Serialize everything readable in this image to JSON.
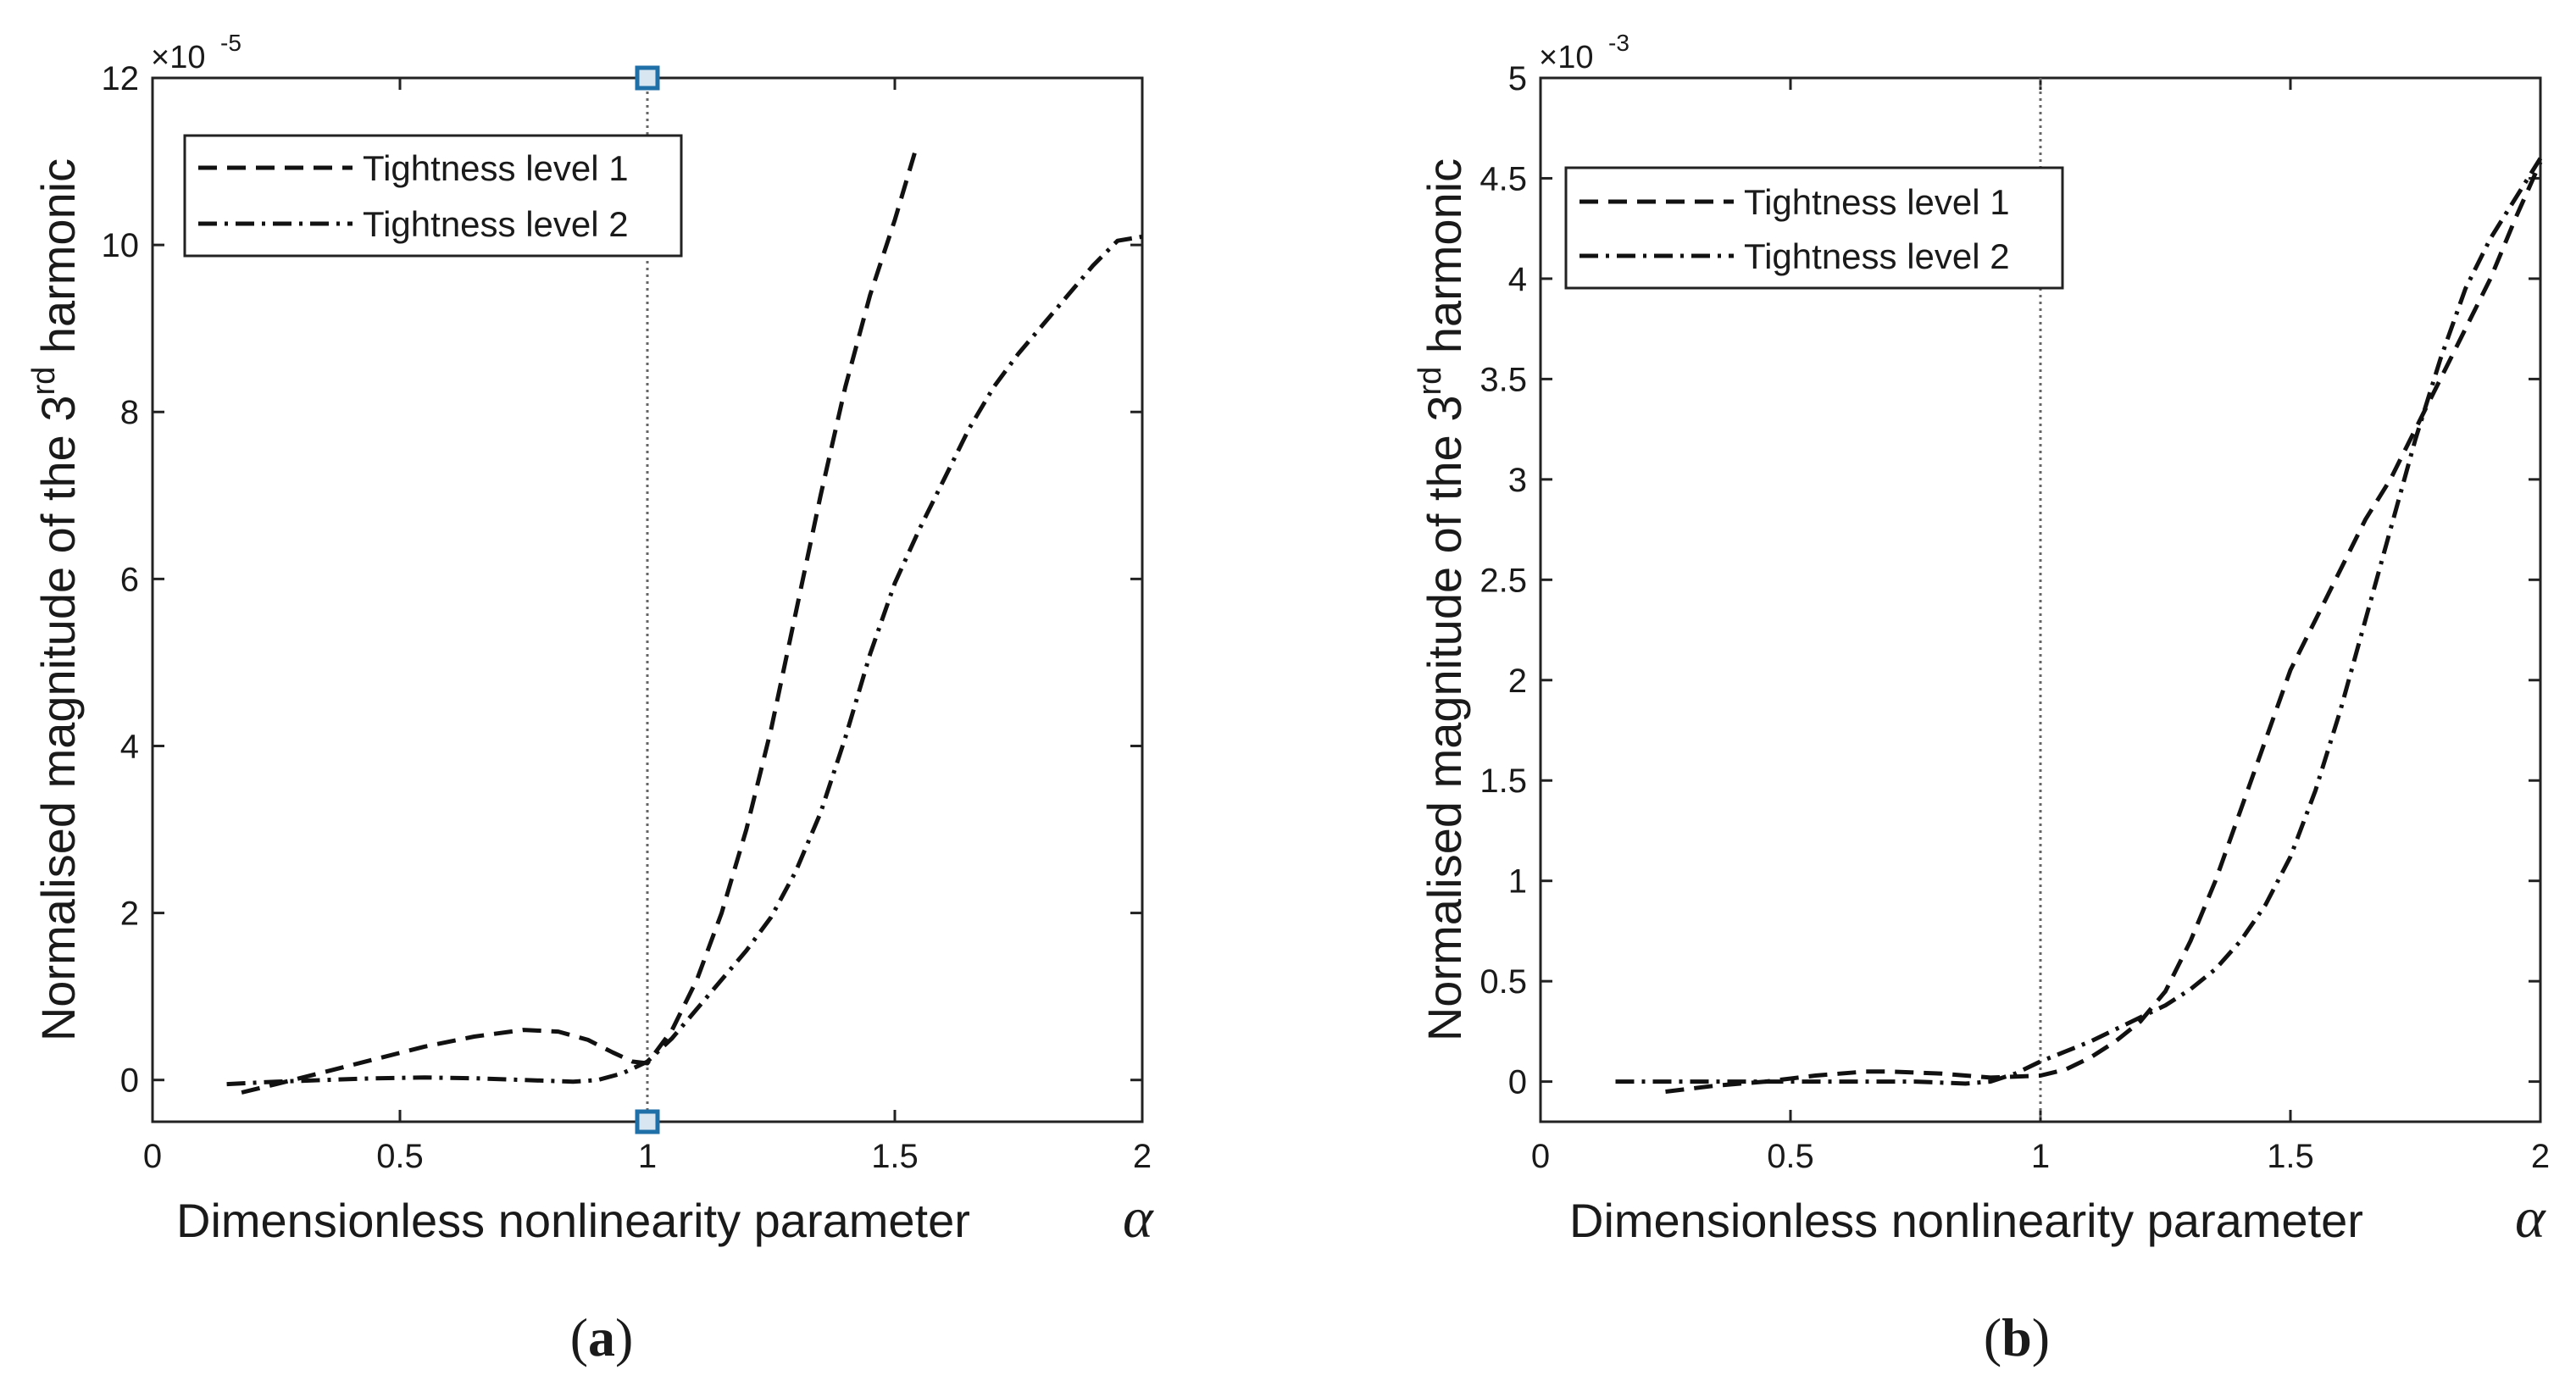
{
  "chart_data": [
    {
      "type": "line",
      "panel_label": "a",
      "xlabel": "Dimensionless nonlinearity parameter",
      "xlabel_symbol": "α",
      "ylabel": {
        "prefix": "Normalised magnitude of the 3",
        "sup": "rd",
        "suffix": " harmonic"
      },
      "exponent": {
        "base": "×10",
        "power": "-5"
      },
      "xlim": [
        0,
        2
      ],
      "ylim": [
        -0.5,
        12
      ],
      "xticks": [
        0,
        0.5,
        1,
        1.5,
        2
      ],
      "xtick_labels": [
        "0",
        "0.5",
        "1",
        "1.5",
        "2"
      ],
      "yticks": [
        0,
        2,
        4,
        6,
        8,
        10,
        12
      ],
      "ytick_labels": [
        "0",
        "2",
        "4",
        "6",
        "8",
        "10",
        "12"
      ],
      "vline": 1,
      "vline_markers": [
        [
          1,
          12
        ],
        [
          1,
          -0.5
        ]
      ],
      "marker_color": "#1f6fa8",
      "legend_position": "top-left",
      "series": [
        {
          "name": "Tightness level 1",
          "style": "dashed",
          "x": [
            0.18,
            0.25,
            0.35,
            0.45,
            0.55,
            0.65,
            0.75,
            0.82,
            0.88,
            0.93,
            0.97,
            1.0,
            1.05,
            1.1,
            1.15,
            1.2,
            1.25,
            1.3,
            1.35,
            1.4,
            1.45,
            1.5,
            1.54
          ],
          "y": [
            -0.15,
            -0.05,
            0.1,
            0.25,
            0.4,
            0.52,
            0.6,
            0.58,
            0.48,
            0.33,
            0.22,
            0.2,
            0.6,
            1.2,
            2.0,
            3.0,
            4.2,
            5.6,
            7.0,
            8.3,
            9.4,
            10.3,
            11.1
          ]
        },
        {
          "name": "Tightness level 2",
          "style": "dash-dot",
          "x": [
            0.15,
            0.25,
            0.35,
            0.45,
            0.55,
            0.65,
            0.75,
            0.85,
            0.9,
            0.95,
            1.0,
            1.05,
            1.1,
            1.15,
            1.2,
            1.25,
            1.3,
            1.35,
            1.4,
            1.45,
            1.5,
            1.55,
            1.6,
            1.65,
            1.7,
            1.75,
            1.8,
            1.85,
            1.9,
            1.95,
            2.0
          ],
          "y": [
            -0.05,
            -0.02,
            0.0,
            0.02,
            0.03,
            0.02,
            0.0,
            -0.02,
            0.0,
            0.08,
            0.22,
            0.5,
            0.85,
            1.2,
            1.55,
            1.95,
            2.5,
            3.2,
            4.1,
            5.1,
            5.95,
            6.6,
            7.2,
            7.8,
            8.3,
            8.7,
            9.05,
            9.4,
            9.75,
            10.05,
            10.1
          ]
        }
      ]
    },
    {
      "type": "line",
      "panel_label": "b",
      "xlabel": "Dimensionless nonlinearity parameter",
      "xlabel_symbol": "α",
      "ylabel": {
        "prefix": "Normalised magnitude of the 3",
        "sup": "rd",
        "suffix": " harmonic"
      },
      "exponent": {
        "base": "×10",
        "power": "-3"
      },
      "xlim": [
        0,
        2
      ],
      "ylim": [
        -0.2,
        5
      ],
      "xticks": [
        0,
        0.5,
        1,
        1.5,
        2
      ],
      "xtick_labels": [
        "0",
        "0.5",
        "1",
        "1.5",
        "2"
      ],
      "yticks": [
        0,
        0.5,
        1,
        1.5,
        2,
        2.5,
        3,
        3.5,
        4,
        4.5,
        5
      ],
      "ytick_labels": [
        "0",
        "0.5",
        "1",
        "1.5",
        "2",
        "2.5",
        "3",
        "3.5",
        "4",
        "4.5",
        "5"
      ],
      "vline": 1,
      "legend_position": "top-left",
      "series": [
        {
          "name": "Tightness level 1",
          "style": "dashed",
          "x": [
            0.25,
            0.35,
            0.45,
            0.55,
            0.65,
            0.7,
            0.8,
            0.9,
            1.0,
            1.05,
            1.1,
            1.15,
            1.2,
            1.25,
            1.3,
            1.35,
            1.4,
            1.45,
            1.5,
            1.55,
            1.6,
            1.65,
            1.7,
            1.75,
            1.8,
            1.85,
            1.9,
            1.95,
            2.0
          ],
          "y": [
            -0.05,
            -0.02,
            0.0,
            0.03,
            0.05,
            0.05,
            0.04,
            0.02,
            0.03,
            0.06,
            0.12,
            0.2,
            0.3,
            0.45,
            0.7,
            1.0,
            1.35,
            1.7,
            2.05,
            2.3,
            2.55,
            2.8,
            3.0,
            3.25,
            3.5,
            3.75,
            4.0,
            4.3,
            4.58
          ]
        },
        {
          "name": "Tightness level 2",
          "style": "dash-dot",
          "x": [
            0.15,
            0.25,
            0.35,
            0.45,
            0.55,
            0.65,
            0.75,
            0.85,
            0.9,
            0.95,
            1.0,
            1.05,
            1.1,
            1.15,
            1.2,
            1.25,
            1.3,
            1.35,
            1.4,
            1.45,
            1.5,
            1.55,
            1.6,
            1.65,
            1.7,
            1.75,
            1.8,
            1.85,
            1.9,
            1.95,
            2.0
          ],
          "y": [
            0.0,
            0.0,
            0.0,
            0.0,
            0.0,
            0.0,
            0.0,
            -0.01,
            0.0,
            0.04,
            0.1,
            0.15,
            0.2,
            0.26,
            0.32,
            0.38,
            0.46,
            0.56,
            0.7,
            0.88,
            1.12,
            1.45,
            1.85,
            2.3,
            2.75,
            3.2,
            3.6,
            3.95,
            4.2,
            4.4,
            4.6
          ]
        }
      ]
    }
  ]
}
